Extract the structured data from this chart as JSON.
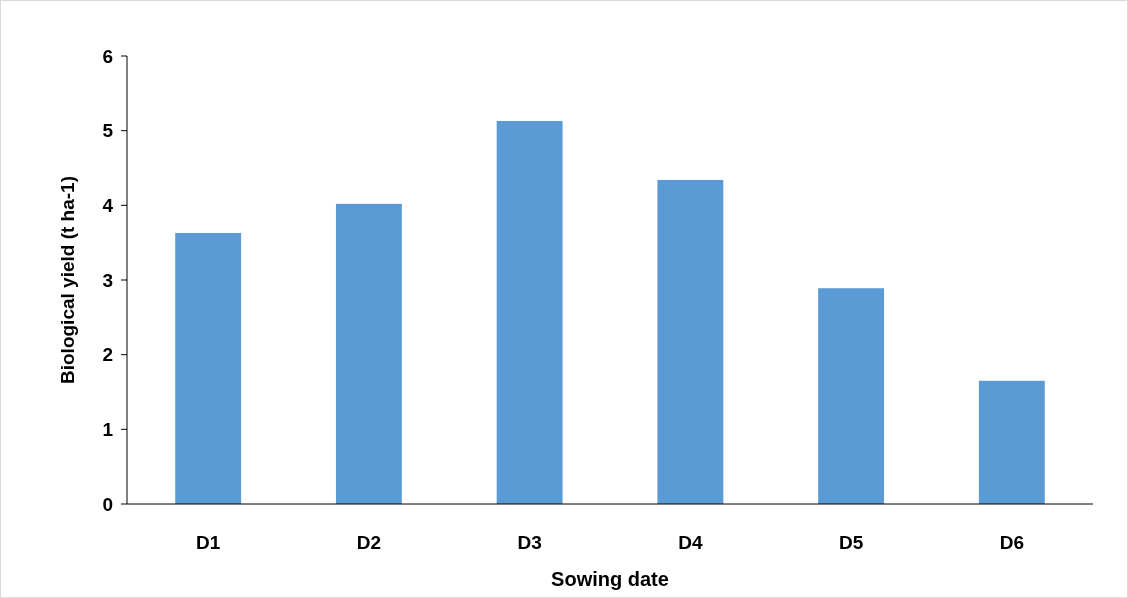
{
  "chart_data": {
    "type": "bar",
    "xlabel": "Sowing date",
    "ylabel": "Biological yield (t ha-1)",
    "categories": [
      "D1",
      "D2",
      "D3",
      "D4",
      "D5",
      "D6"
    ],
    "values": [
      3.63,
      4.02,
      5.13,
      4.34,
      2.89,
      1.65
    ],
    "color": "#5b9bd5",
    "ylim": [
      0,
      6
    ],
    "yticks": [
      0,
      1,
      2,
      3,
      4,
      5,
      6
    ],
    "grid": false
  }
}
